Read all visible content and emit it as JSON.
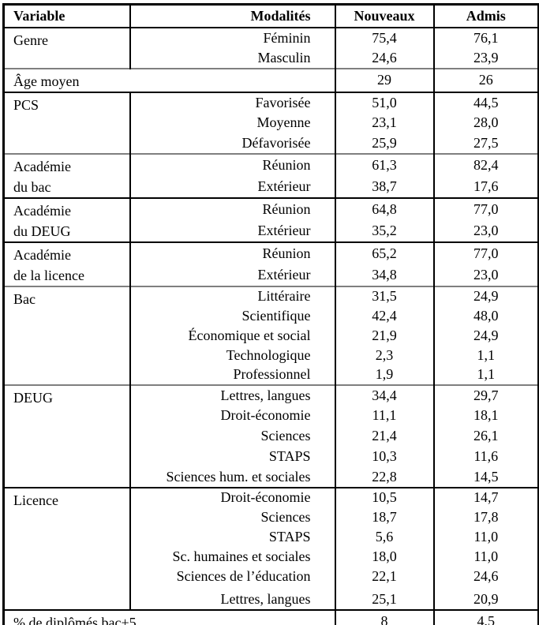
{
  "table": {
    "headers": [
      "Variable",
      "Modalités",
      "Nouveaux",
      "Admis"
    ],
    "colors": {
      "text": "#000000",
      "border": "#000000",
      "gray_separator": "#7f7f7f",
      "background": "#ffffff"
    },
    "groups": [
      {
        "variable": "Genre",
        "separator": "black",
        "rows": [
          {
            "modality": "Féminin",
            "nouveaux": "75,4",
            "admis": "76,1"
          },
          {
            "modality": "Masculin",
            "nouveaux": "24,6",
            "admis": "23,9"
          }
        ]
      },
      {
        "variable": "Âge moyen",
        "span": true,
        "separator": "gray",
        "rows": [
          {
            "nouveaux": "29",
            "admis": "26"
          }
        ]
      },
      {
        "variable": "PCS",
        "separator": "black",
        "rows": [
          {
            "modality": "Favorisée",
            "nouveaux": "51,0",
            "admis": "44,5"
          },
          {
            "modality": "Moyenne",
            "nouveaux": "23,1",
            "admis": "28,0"
          },
          {
            "modality": "Défavorisée",
            "nouveaux": "25,9",
            "admis": "27,5"
          }
        ]
      },
      {
        "variable": "Académie\ndu bac",
        "separator": "gray",
        "rows": [
          {
            "modality": "Réunion",
            "nouveaux": "61,3",
            "admis": "82,4"
          },
          {
            "modality": "Extérieur",
            "nouveaux": "38,7",
            "admis": "17,6"
          }
        ]
      },
      {
        "variable": "Académie\ndu DEUG",
        "separator": "black",
        "rows": [
          {
            "modality": "Réunion",
            "nouveaux": "64,8",
            "admis": "77,0"
          },
          {
            "modality": "Extérieur",
            "nouveaux": "35,2",
            "admis": "23,0"
          }
        ]
      },
      {
        "variable": "Académie\nde la licence",
        "separator": "black",
        "rows": [
          {
            "modality": "Réunion",
            "nouveaux": "65,2",
            "admis": "77,0"
          },
          {
            "modality": "Extérieur",
            "nouveaux": "34,8",
            "admis": "23,0"
          }
        ]
      },
      {
        "variable": "Bac",
        "separator": "gray",
        "rows": [
          {
            "modality": "Littéraire",
            "nouveaux": "31,5",
            "admis": "24,9"
          },
          {
            "modality": "Scientifique",
            "nouveaux": "42,4",
            "admis": "48,0"
          },
          {
            "modality": "Économique et social",
            "nouveaux": "21,9",
            "admis": "24,9"
          },
          {
            "modality": "Technologique",
            "nouveaux": "2,3",
            "admis": "1,1"
          },
          {
            "modality": "Professionnel",
            "nouveaux": "1,9",
            "admis": "1,1"
          }
        ]
      },
      {
        "variable": "DEUG",
        "separator": "gray",
        "rows": [
          {
            "modality": "Lettres, langues",
            "nouveaux": "34,4",
            "admis": "29,7"
          },
          {
            "modality": "Droit-économie",
            "nouveaux": "11,1",
            "admis": "18,1"
          },
          {
            "modality": "Sciences",
            "nouveaux": "21,4",
            "admis": "26,1"
          },
          {
            "modality": "STAPS",
            "nouveaux": "10,3",
            "admis": "11,6"
          },
          {
            "modality": "Sciences hum. et sociales",
            "nouveaux": "22,8",
            "admis": "14,5"
          }
        ]
      },
      {
        "variable": "Licence",
        "separator": "black",
        "rows": [
          {
            "modality": "Droit-économie",
            "nouveaux": "10,5",
            "admis": "14,7"
          },
          {
            "modality": "Sciences",
            "nouveaux": "18,7",
            "admis": "17,8"
          },
          {
            "modality": "STAPS",
            "nouveaux": "5,6",
            "admis": "11,0"
          },
          {
            "modality": "Sc. humaines et sociales",
            "nouveaux": "18,0",
            "admis": "11,0"
          },
          {
            "modality": "Sciences de l’éducation",
            "nouveaux": "22,1",
            "admis": "24,6"
          },
          {
            "modality": "Lettres, langues",
            "nouveaux": "25,1",
            "admis": "20,9"
          }
        ]
      },
      {
        "variable": "% de diplômés bac+5",
        "span": true,
        "separator": "black",
        "rows": [
          {
            "nouveaux": "8",
            "admis": "4,5"
          }
        ]
      }
    ]
  }
}
